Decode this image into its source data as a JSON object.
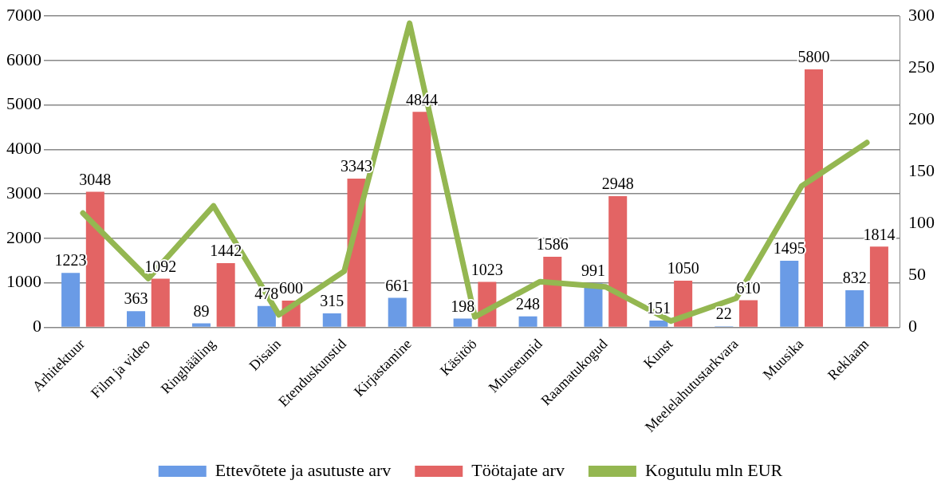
{
  "chart_data": {
    "type": "bar",
    "categories": [
      "Arhitektuur",
      "Film ja video",
      "Ringhääling",
      "Disain",
      "Etenduskunstid",
      "Kirjastamine",
      "Käsitöö",
      "Muuseumid",
      "Raamatukogud",
      "Kunst",
      "Meelelahutustarkvara",
      "Muusika",
      "Reklaam"
    ],
    "series": [
      {
        "name": "Ettevõtete ja asutuste arv",
        "color": "#6a9be6",
        "values": [
          1223,
          363,
          89,
          478,
          315,
          661,
          198,
          248,
          991,
          151,
          22,
          1495,
          832
        ]
      },
      {
        "name": "Töötajate arv",
        "color": "#e36464",
        "values": [
          3048,
          1092,
          1442,
          600,
          3343,
          4844,
          1023,
          1586,
          2948,
          1050,
          610,
          5800,
          1814
        ]
      },
      {
        "name": "Kogutulu mln EUR",
        "type": "line",
        "axis": "y2",
        "color": "#94b751",
        "data_labels": false,
        "values": [
          110,
          47,
          117,
          12,
          54,
          293,
          10,
          44,
          39,
          6,
          28,
          136,
          178
        ]
      }
    ],
    "ylim": [
      0,
      7000
    ],
    "yticks": [
      0,
      1000,
      2000,
      3000,
      4000,
      5000,
      6000,
      7000
    ],
    "y2lim": [
      0,
      300
    ],
    "y2ticks": [
      0,
      50,
      100,
      150,
      200,
      250,
      300
    ],
    "grid": "y",
    "legend": "bottom",
    "data_labels": true,
    "marker": "none",
    "line_style": "solid"
  }
}
